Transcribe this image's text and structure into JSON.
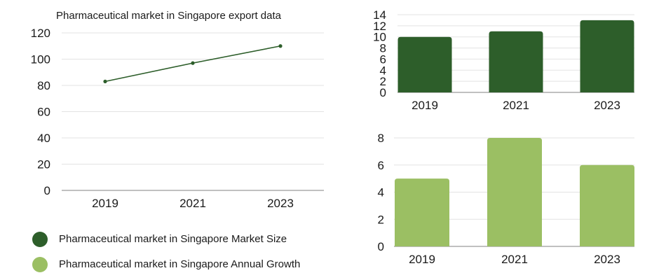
{
  "chart_data": [
    {
      "id": "line",
      "type": "line",
      "title": "Pharmaceutical market in Singapore export data",
      "categories": [
        "2019",
        "2021",
        "2023"
      ],
      "series": [
        {
          "name": "Pharmaceutical market in Singapore Market Size",
          "values": [
            83,
            97,
            110
          ],
          "color": "#2d5e2a"
        }
      ],
      "ylim": [
        0,
        120
      ],
      "yticks": [
        0,
        20,
        40,
        60,
        80,
        100,
        120
      ],
      "grid": true
    },
    {
      "id": "bar_top",
      "type": "bar",
      "title": "",
      "categories": [
        "2019",
        "2021",
        "2023"
      ],
      "series": [
        {
          "name": "Pharmaceutical market in Singapore Market Size",
          "values": [
            10,
            11,
            13
          ],
          "color": "#2d5e2a"
        }
      ],
      "ylim": [
        0,
        14
      ],
      "yticks": [
        0,
        2,
        4,
        6,
        8,
        10,
        12,
        14
      ],
      "grid": true
    },
    {
      "id": "bar_bottom",
      "type": "bar",
      "title": "",
      "categories": [
        "2019",
        "2021",
        "2023"
      ],
      "series": [
        {
          "name": "Pharmaceutical market in Singapore Annual Growth",
          "values": [
            5,
            8,
            6
          ],
          "color": "#9bbf63"
        }
      ],
      "ylim": [
        0,
        8
      ],
      "yticks": [
        0,
        2,
        4,
        6,
        8
      ],
      "grid": true
    }
  ],
  "legend": [
    {
      "label": "Pharmaceutical market in Singapore Market Size",
      "color": "#2d5e2a"
    },
    {
      "label": "Pharmaceutical market in Singapore Annual Growth",
      "color": "#9bbf63"
    }
  ]
}
